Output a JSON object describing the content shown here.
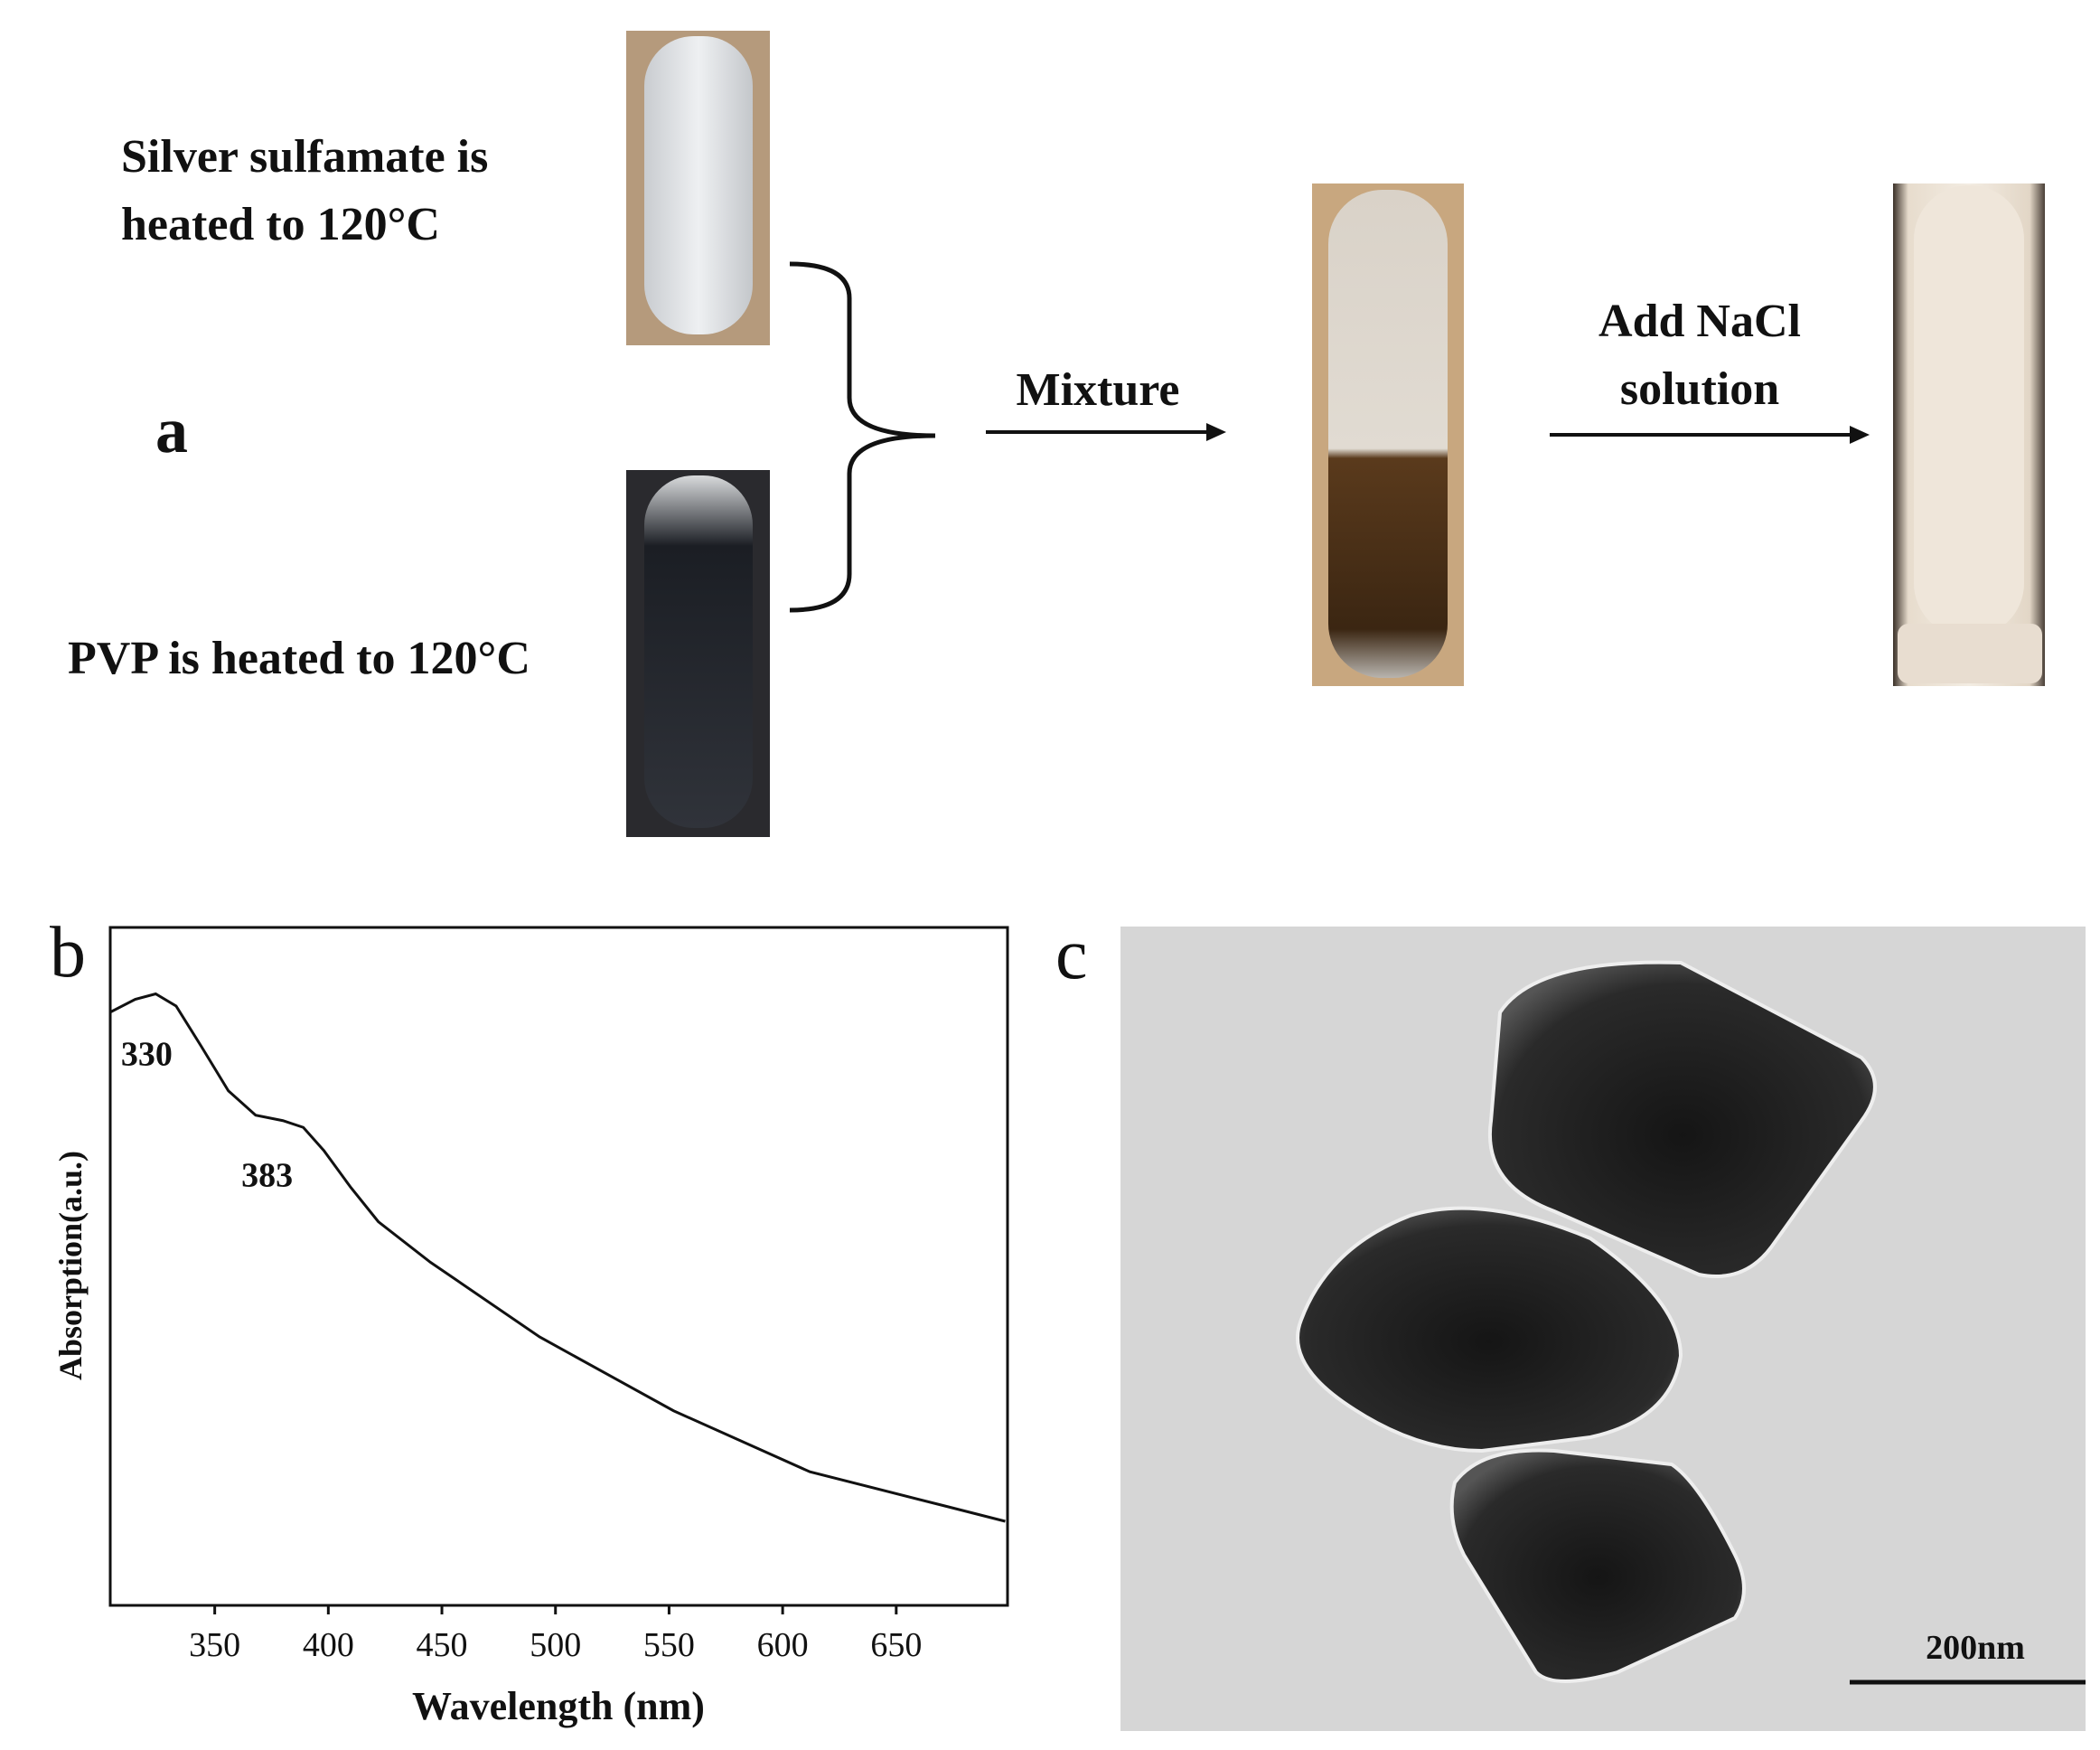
{
  "panel_a": {
    "label": "a",
    "step1": [
      "Silver sulfamate is",
      "heated to 120°C"
    ],
    "step2": "PVP is heated to 120°C",
    "arrow1": "Mixture",
    "arrow2": [
      "Add NaCl",
      "solution"
    ]
  },
  "chart_data": {
    "type": "line",
    "panel_label": "b",
    "xlabel": "Wavelength (nm)",
    "ylabel": "Absorption(a.u.)",
    "x": [
      304,
      315,
      324,
      333,
      344,
      356,
      368,
      380,
      389,
      398,
      410,
      422,
      445,
      493,
      552,
      612,
      671,
      698
    ],
    "series": [
      {
        "color": "#111111",
        "values": [
          0.875,
          0.894,
          0.902,
          0.884,
          0.825,
          0.759,
          0.723,
          0.715,
          0.705,
          0.671,
          0.616,
          0.566,
          0.506,
          0.396,
          0.287,
          0.197,
          0.147,
          0.124
        ]
      }
    ],
    "peaks": [
      330,
      383
    ],
    "xlim": [
      304,
      699
    ],
    "xticks": [
      350,
      400,
      450,
      500,
      550,
      600,
      650
    ],
    "ylim": [
      0,
      1
    ]
  },
  "panel_c": {
    "label": "c",
    "scale_bar": "200nm"
  }
}
